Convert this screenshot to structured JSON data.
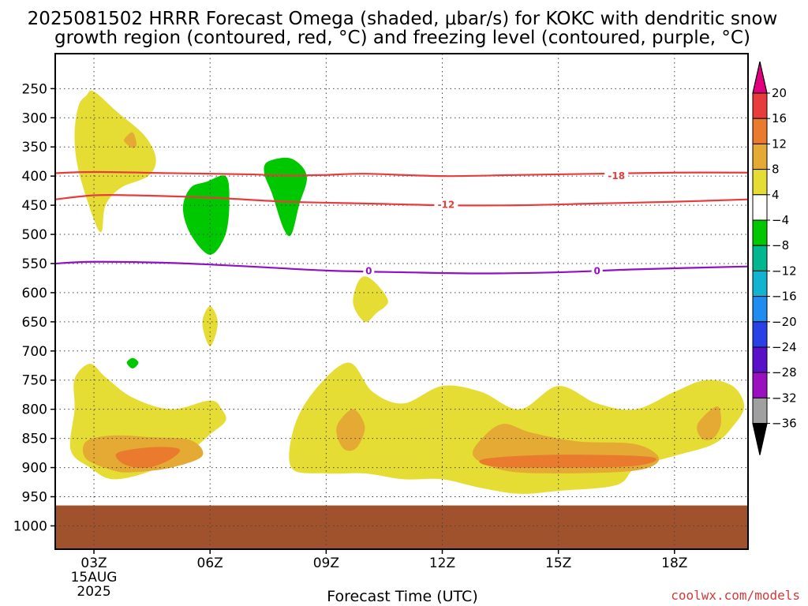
{
  "title": {
    "line1": "2025081502 HRRR Forecast Omega (shaded, μbar/s) for KOKC with dendritic snow",
    "line2": "growth region (contoured, red, °C) and freezing level (contoured, purple, °C)"
  },
  "credit": "coolwx.com/models",
  "chart_data": {
    "type": "time-height contour",
    "title": "2025081502 HRRR Forecast Omega (shaded, μbar/s) for KOKC with dendritic snow growth region (contoured, red, °C) and freezing level (contoured, purple, °C)",
    "xlabel": "Forecast Time (UTC)",
    "x_ticks": [
      "03Z",
      "06Z",
      "09Z",
      "12Z",
      "15Z",
      "18Z"
    ],
    "x_date_label": [
      "15AUG",
      "2025"
    ],
    "xlim_hours": [
      2,
      19.9
    ],
    "ylabel": "",
    "y_ticks": [
      250,
      300,
      350,
      400,
      450,
      500,
      550,
      600,
      650,
      700,
      750,
      800,
      850,
      900,
      950,
      1000
    ],
    "ylim_hPa": [
      190,
      1040
    ],
    "colorbar": {
      "unit": "μbar/s",
      "labels": [
        "20",
        "16",
        "12",
        "8",
        "4",
        "−4",
        "−8",
        "−12",
        "−16",
        "−20",
        "−24",
        "−28",
        "−32",
        "−36"
      ],
      "bins": [
        {
          "color": "#e0007e",
          "range": [
            20,
            null
          ]
        },
        {
          "color": "#e83c3c",
          "range": [
            16,
            20
          ]
        },
        {
          "color": "#ea7a2e",
          "range": [
            12,
            16
          ]
        },
        {
          "color": "#e4aa34",
          "range": [
            8,
            12
          ]
        },
        {
          "color": "#e6dd34",
          "range": [
            4,
            8
          ]
        },
        {
          "color": "#ffffff",
          "range": [
            -4,
            4
          ]
        },
        {
          "color": "#00c800",
          "range": [
            -8,
            -4
          ]
        },
        {
          "color": "#00b890",
          "range": [
            -12,
            -8
          ]
        },
        {
          "color": "#10b4d0",
          "range": [
            -16,
            -12
          ]
        },
        {
          "color": "#1e8cf0",
          "range": [
            -20,
            -16
          ]
        },
        {
          "color": "#2840e6",
          "range": [
            -24,
            -20
          ]
        },
        {
          "color": "#5a10c8",
          "range": [
            -28,
            -24
          ]
        },
        {
          "color": "#9a10c0",
          "range": [
            -32,
            -28
          ]
        },
        {
          "color": "#a0a0a0",
          "range": [
            -36,
            -32
          ]
        },
        {
          "color": "#000000",
          "range": [
            null,
            -36
          ]
        }
      ]
    },
    "contours": [
      {
        "level": -18,
        "label": "-18",
        "color": "#e83c3c",
        "points": [
          [
            2,
            395
          ],
          [
            3,
            393
          ],
          [
            5,
            395
          ],
          [
            7,
            397
          ],
          [
            8,
            399
          ],
          [
            9,
            398
          ],
          [
            10,
            396
          ],
          [
            12,
            400
          ],
          [
            14,
            398
          ],
          [
            16,
            396
          ],
          [
            18,
            394
          ],
          [
            19.9,
            394
          ]
        ]
      },
      {
        "level": -12,
        "label": "-12",
        "color": "#e83c3c",
        "points": [
          [
            2,
            440
          ],
          [
            3,
            433
          ],
          [
            4,
            433
          ],
          [
            6,
            437
          ],
          [
            8,
            444
          ],
          [
            10,
            447
          ],
          [
            12,
            450
          ],
          [
            14,
            450
          ],
          [
            16,
            447
          ],
          [
            18,
            444
          ],
          [
            19.9,
            440
          ]
        ]
      },
      {
        "level": 0,
        "label": "0",
        "color": "#9010c8",
        "points": [
          [
            2,
            550
          ],
          [
            3,
            547
          ],
          [
            5,
            549
          ],
          [
            7,
            555
          ],
          [
            9,
            562
          ],
          [
            11,
            565
          ],
          [
            13,
            567
          ],
          [
            15,
            565
          ],
          [
            17,
            560
          ],
          [
            19.9,
            555
          ]
        ]
      }
    ],
    "contour_labels": [
      {
        "text": "-18",
        "x": 16.5,
        "y": 400,
        "color": "#e83c3c"
      },
      {
        "text": "-12",
        "x": 12.1,
        "y": 449,
        "color": "#e83c3c"
      },
      {
        "text": "0",
        "x": 10.1,
        "y": 563,
        "color": "#9010c8"
      },
      {
        "text": "0",
        "x": 16.0,
        "y": 563,
        "color": "#9010c8"
      }
    ],
    "ground_below_hPa": 965,
    "ground_color": "#a0522d",
    "regions": [
      {
        "bin": "4 to 8",
        "color": "#e6dd34",
        "points": [
          [
            3,
            255
          ],
          [
            3.6,
            290
          ],
          [
            4.3,
            330
          ],
          [
            4.6,
            370
          ],
          [
            4.4,
            400
          ],
          [
            3.7,
            420
          ],
          [
            3.3,
            450
          ],
          [
            3.2,
            495
          ],
          [
            3.0,
            475
          ],
          [
            2.6,
            390
          ],
          [
            2.5,
            330
          ],
          [
            2.6,
            280
          ],
          [
            2.8,
            262
          ]
        ]
      },
      {
        "bin": "8 to 12",
        "color": "#e4aa34",
        "points": [
          [
            3.8,
            335
          ],
          [
            4,
            325
          ],
          [
            4.1,
            345
          ],
          [
            4.0,
            352
          ],
          [
            3.8,
            342
          ]
        ]
      },
      {
        "bin": "-4 to -8",
        "color": "#00c800",
        "points": [
          [
            5.9,
            410
          ],
          [
            6.4,
            400
          ],
          [
            6.5,
            440
          ],
          [
            6.4,
            500
          ],
          [
            6.0,
            535
          ],
          [
            5.5,
            500
          ],
          [
            5.3,
            455
          ],
          [
            5.5,
            420
          ]
        ]
      },
      {
        "bin": "-4 to -8",
        "color": "#00c800",
        "points": [
          [
            7.5,
            375
          ],
          [
            8.1,
            370
          ],
          [
            8.5,
            400
          ],
          [
            8.3,
            450
          ],
          [
            8.1,
            500
          ],
          [
            7.9,
            490
          ],
          [
            7.6,
            430
          ],
          [
            7.4,
            395
          ]
        ]
      },
      {
        "bin": "4 to 8",
        "color": "#e6dd34",
        "points": [
          [
            6,
            623
          ],
          [
            6.2,
            652
          ],
          [
            6.0,
            692
          ],
          [
            5.8,
            652
          ]
        ]
      },
      {
        "bin": "4 to 8",
        "color": "#e6dd34",
        "points": [
          [
            10,
            572
          ],
          [
            10.3,
            585
          ],
          [
            10.6,
            615
          ],
          [
            10.3,
            635
          ],
          [
            10,
            650
          ],
          [
            9.7,
            620
          ],
          [
            9.8,
            585
          ]
        ]
      },
      {
        "bin": "-4 to -8",
        "color": "#00c800",
        "points": [
          [
            4,
            712
          ],
          [
            4.15,
            720
          ],
          [
            4,
            730
          ],
          [
            3.85,
            720
          ]
        ]
      },
      {
        "bin": "4 to 8",
        "color": "#e6dd34",
        "points": [
          [
            2.5,
            748
          ],
          [
            2.9,
            722
          ],
          [
            3.3,
            745
          ],
          [
            4,
            780
          ],
          [
            5,
            800
          ],
          [
            6.0,
            785
          ],
          [
            6.3,
            800
          ],
          [
            6.4,
            820
          ],
          [
            6.0,
            843
          ],
          [
            5.5,
            870
          ],
          [
            4.5,
            905
          ],
          [
            3.5,
            920
          ],
          [
            2.9,
            900
          ],
          [
            2.4,
            870
          ],
          [
            2.5,
            800
          ]
        ]
      },
      {
        "bin": "8 to 12",
        "color": "#e4aa34",
        "points": [
          [
            2.8,
            855
          ],
          [
            3.5,
            845
          ],
          [
            4.5,
            848
          ],
          [
            5.5,
            853
          ],
          [
            5.8,
            880
          ],
          [
            5,
            900
          ],
          [
            4,
            908
          ],
          [
            3.5,
            905
          ],
          [
            2.8,
            885
          ]
        ]
      },
      {
        "bin": "12 to 16",
        "color": "#ea7a2e",
        "points": [
          [
            3.6,
            875
          ],
          [
            4.5,
            865
          ],
          [
            5.2,
            868
          ],
          [
            5.0,
            885
          ],
          [
            4.4,
            900
          ],
          [
            3.8,
            895
          ]
        ]
      },
      {
        "bin": "4 to 8",
        "color": "#e6dd34",
        "points": [
          [
            8.1,
            900
          ],
          [
            8.2,
            825
          ],
          [
            8.8,
            760
          ],
          [
            9.6,
            720
          ],
          [
            10.2,
            770
          ],
          [
            11,
            790
          ],
          [
            12,
            760
          ],
          [
            13,
            770
          ],
          [
            14,
            800
          ],
          [
            15,
            760
          ],
          [
            16,
            790
          ],
          [
            17,
            800
          ],
          [
            18,
            770
          ],
          [
            18.8,
            750
          ],
          [
            19.5,
            760
          ],
          [
            19.8,
            795
          ],
          [
            19.5,
            830
          ],
          [
            19,
            860
          ],
          [
            18,
            880
          ],
          [
            17,
            900
          ],
          [
            16.5,
            930
          ],
          [
            15,
            940
          ],
          [
            14,
            945
          ],
          [
            13,
            935
          ],
          [
            12,
            920
          ],
          [
            11,
            920
          ],
          [
            10,
            910
          ],
          [
            9,
            910
          ]
        ]
      },
      {
        "bin": "8 to 12",
        "color": "#e4aa34",
        "points": [
          [
            9.3,
            825
          ],
          [
            9.7,
            800
          ],
          [
            10.0,
            830
          ],
          [
            9.8,
            865
          ],
          [
            9.5,
            870
          ],
          [
            9.3,
            850
          ]
        ]
      },
      {
        "bin": "8 to 12",
        "color": "#e4aa34",
        "points": [
          [
            13.6,
            825
          ],
          [
            14.3,
            840
          ],
          [
            15.5,
            855
          ],
          [
            17.0,
            860
          ],
          [
            17.6,
            885
          ],
          [
            17,
            905
          ],
          [
            15,
            910
          ],
          [
            13.6,
            905
          ],
          [
            12.8,
            880
          ],
          [
            13.1,
            845
          ]
        ]
      },
      {
        "bin": "12 to 16",
        "color": "#ea7a2e",
        "points": [
          [
            13.1,
            885
          ],
          [
            15,
            878
          ],
          [
            17.4,
            882
          ],
          [
            17,
            897
          ],
          [
            15,
            900
          ],
          [
            13.3,
            898
          ]
        ]
      },
      {
        "bin": "8 to 12",
        "color": "#e4aa34",
        "points": [
          [
            18.6,
            825
          ],
          [
            19.1,
            795
          ],
          [
            19.2,
            825
          ],
          [
            19,
            850
          ],
          [
            18.7,
            850
          ]
        ]
      }
    ]
  }
}
